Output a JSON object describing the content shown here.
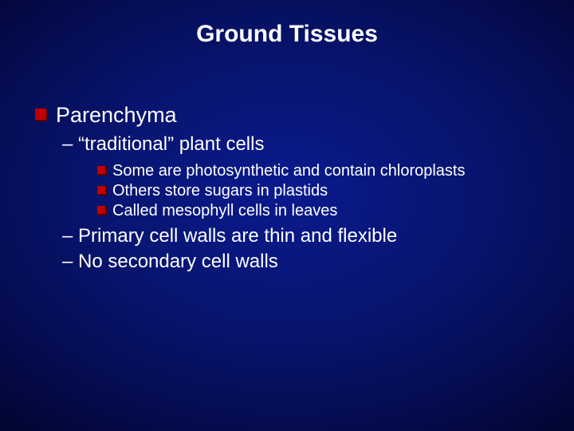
{
  "slide": {
    "title": "Ground Tissues",
    "background": {
      "center_color": "#0a1a8e",
      "edge_color": "#010218"
    },
    "bullet_color": "#c00000",
    "bullet_shadow": "#5a0000",
    "text_color": "#ffffff",
    "content": {
      "heading": "Parenchyma",
      "sub1": "– “traditional” plant cells",
      "detail1": "Some are photosynthetic and contain chloroplasts",
      "detail2": "Others store sugars in plastids",
      "detail3": "Called mesophyll cells in leaves",
      "sub2": "– Primary cell walls are thin and flexible",
      "sub3": "– No secondary cell walls"
    }
  }
}
